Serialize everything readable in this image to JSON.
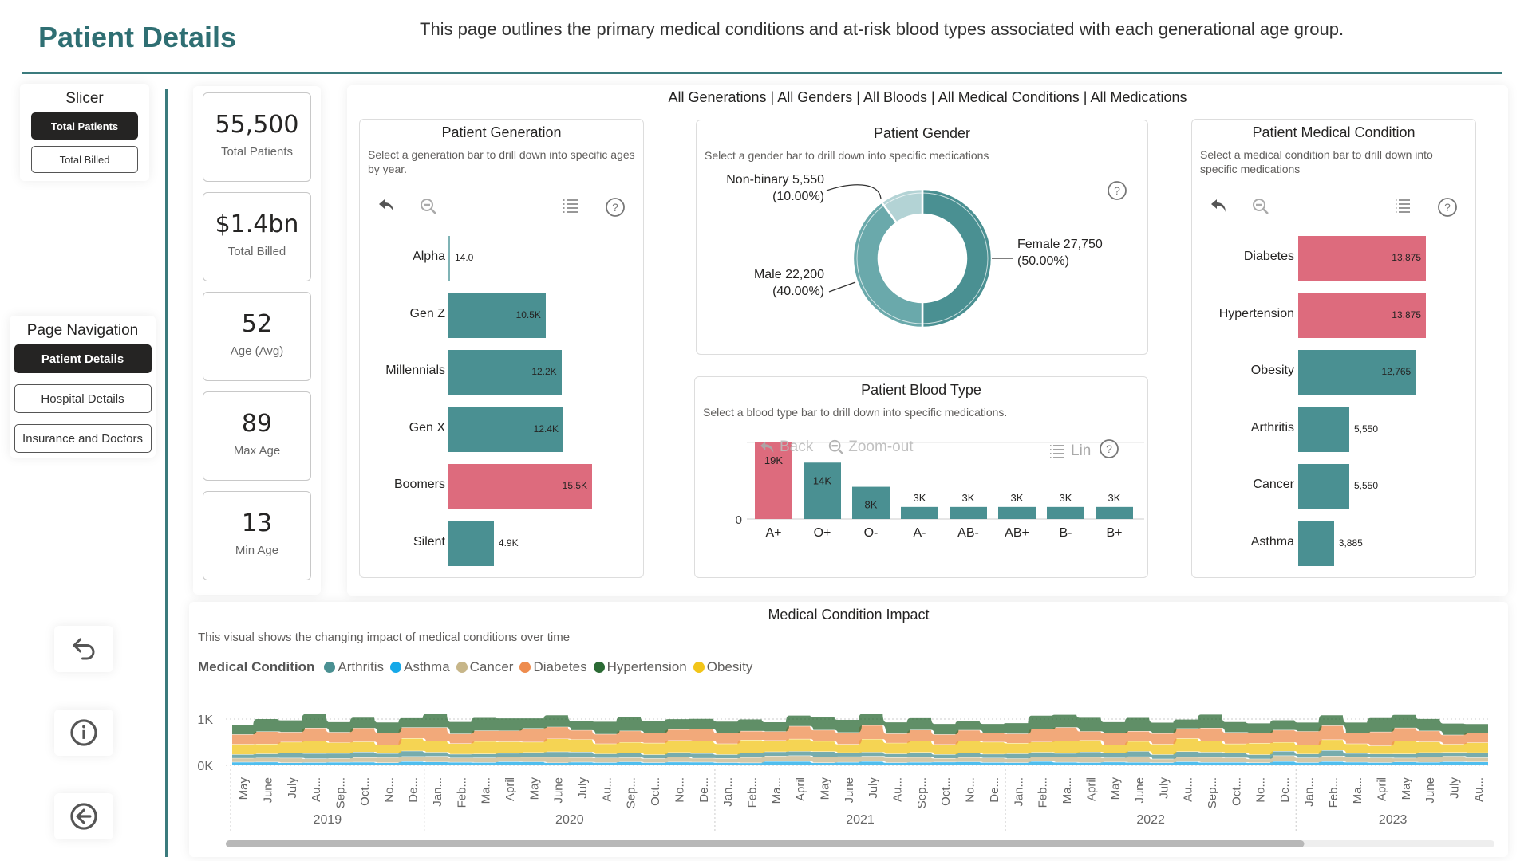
{
  "header": {
    "title": "Patient Details",
    "subtitle": "This page outlines the primary medical conditions and at-risk blood types associated with each generational age group."
  },
  "slicer": {
    "title": "Slicer",
    "options": [
      {
        "label": "Total Patients",
        "active": true
      },
      {
        "label": "Total Billed",
        "active": false
      }
    ]
  },
  "navigation": {
    "title": "Page Navigation",
    "pages": [
      {
        "label": "Patient Details",
        "active": true
      },
      {
        "label": "Hospital Details",
        "active": false
      },
      {
        "label": "Insurance and Doctors",
        "active": false
      }
    ]
  },
  "side_buttons": [
    {
      "icon": "reset-icon"
    },
    {
      "icon": "info-icon"
    },
    {
      "icon": "back-arrow-icon"
    }
  ],
  "kpis": [
    {
      "value": "55,500",
      "label": "Total Patients"
    },
    {
      "value": "$1.4bn",
      "label": "Total Billed"
    },
    {
      "value": "52",
      "label": "Age (Avg)"
    },
    {
      "value": "89",
      "label": "Max Age"
    },
    {
      "value": "13",
      "label": "Min Age"
    }
  ],
  "filter_summary": "All Generations | All Genders | All Bloods | All Medical Conditions | All Medications",
  "colors": {
    "teal": "#4a9092",
    "pink": "#dd6b7d",
    "teal_light": "#6aa9ab",
    "teal_pale": "#b3d3d5",
    "accent_dark": "#2f6f73"
  },
  "chart_data": [
    {
      "id": "generation",
      "type": "bar",
      "orientation": "horizontal",
      "title": "Patient Generation",
      "description": "Select a generation bar to drill down into specific ages by year.",
      "categories": [
        "Alpha",
        "Gen Z",
        "Millennials",
        "Gen X",
        "Boomers",
        "Silent"
      ],
      "values": [
        14,
        10500,
        12200,
        12400,
        15500,
        4900
      ],
      "labels": [
        "14.0",
        "10.5K",
        "12.2K",
        "12.4K",
        "15.5K",
        "4.9K"
      ],
      "highlight": [
        "Boomers"
      ],
      "xlim": [
        0,
        15500
      ]
    },
    {
      "id": "gender",
      "type": "pie",
      "donut": true,
      "title": "Patient Gender",
      "description": "Select a gender bar to drill down into specific medications",
      "slices": [
        {
          "name": "Female",
          "value": 27750,
          "percent": "50.00%",
          "label": "Female 27,750",
          "pct_label": "(50.00%)"
        },
        {
          "name": "Male",
          "value": 22200,
          "percent": "40.00%",
          "label": "Male 22,200",
          "pct_label": "(40.00%)"
        },
        {
          "name": "Non-binary",
          "value": 5550,
          "percent": "10.00%",
          "label": "Non-binary 5,550",
          "pct_label": "(10.00%)"
        }
      ]
    },
    {
      "id": "blood",
      "type": "bar",
      "orientation": "vertical",
      "title": "Patient Blood Type",
      "description": "Select a blood type bar to drill down into specific medications.",
      "categories": [
        "A+",
        "O+",
        "O-",
        "A-",
        "AB-",
        "AB+",
        "B-",
        "B+"
      ],
      "values": [
        19000,
        14000,
        8000,
        3000,
        3000,
        3000,
        3000,
        3000
      ],
      "labels": [
        "19K",
        "14K",
        "8K",
        "3K",
        "3K",
        "3K",
        "3K",
        "3K"
      ],
      "highlight": [
        "A+"
      ],
      "yaxis_tick": "0",
      "ylim": [
        0,
        19000
      ],
      "toolbar": {
        "back": "Back",
        "zoom_out": "Zoom-out",
        "scale": "Lin"
      }
    },
    {
      "id": "condition",
      "type": "bar",
      "orientation": "horizontal",
      "title": "Patient Medical Condition",
      "description": "Select a medical condition bar to drill down into specific medications",
      "categories": [
        "Diabetes",
        "Hypertension",
        "Obesity",
        "Arthritis",
        "Cancer",
        "Asthma"
      ],
      "values": [
        13875,
        13875,
        12765,
        5550,
        5550,
        3885
      ],
      "labels": [
        "13,875",
        "13,875",
        "12,765",
        "5,550",
        "5,550",
        "3,885"
      ],
      "highlight": [
        "Diabetes",
        "Hypertension"
      ],
      "xlim": [
        0,
        13875
      ]
    },
    {
      "id": "impact",
      "type": "area",
      "stacked": true,
      "title": "Medical Condition Impact",
      "description": "This visual shows the changing impact of medical conditions over time",
      "legend_title": "Medical Condition",
      "legend_position": "top-left",
      "series_order_bottom_to_top": [
        "Asthma",
        "Cancer",
        "Arthritis",
        "Obesity",
        "Diabetes",
        "Hypertension"
      ],
      "series": [
        {
          "name": "Arthritis",
          "color": "#4a9092",
          "avg": 95
        },
        {
          "name": "Asthma",
          "color": "#15a8e8",
          "avg": 65
        },
        {
          "name": "Cancer",
          "color": "#c7b689",
          "avg": 95
        },
        {
          "name": "Diabetes",
          "color": "#ee8c4e",
          "avg": 240
        },
        {
          "name": "Hypertension",
          "color": "#2b6a34",
          "avg": 240
        },
        {
          "name": "Obesity",
          "color": "#f2c519",
          "avg": 220
        }
      ],
      "yticks": [
        "0K",
        "1K"
      ],
      "ylim": [
        0,
        1000
      ],
      "x_months": [
        "May",
        "June",
        "July",
        "Au...",
        "Sep...",
        "Oct...",
        "No...",
        "De...",
        "Jan...",
        "Feb...",
        "Ma...",
        "April",
        "May",
        "June",
        "July",
        "Au...",
        "Sep...",
        "Oct...",
        "No...",
        "De...",
        "Jan...",
        "Feb...",
        "Ma...",
        "April",
        "May",
        "June",
        "July",
        "Au...",
        "Sep...",
        "Oct...",
        "No...",
        "De...",
        "Jan...",
        "Feb...",
        "Ma...",
        "April",
        "May",
        "June",
        "July",
        "Au...",
        "Sep...",
        "Oct...",
        "No...",
        "De...",
        "Jan...",
        "Feb...",
        "Ma...",
        "April",
        "May",
        "June",
        "July",
        "Au..."
      ],
      "years": [
        {
          "label": "2019",
          "months": 8
        },
        {
          "label": "2020",
          "months": 12
        },
        {
          "label": "2021",
          "months": 12
        },
        {
          "label": "2022",
          "months": 12
        },
        {
          "label": "2023",
          "months": 8
        }
      ],
      "scroll_position": 0.85
    }
  ]
}
